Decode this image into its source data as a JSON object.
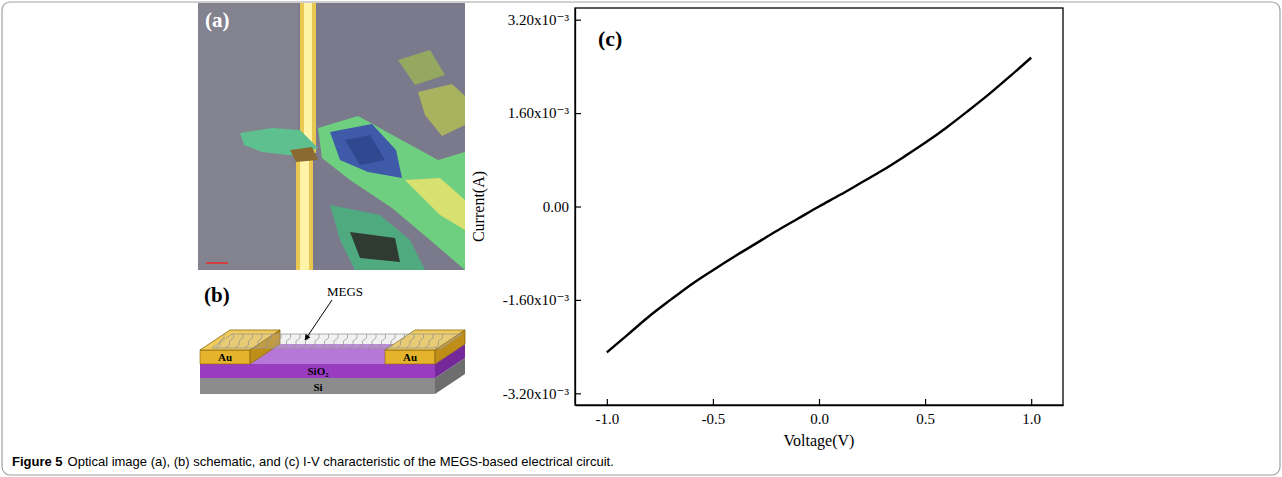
{
  "figure": {
    "caption_label": "Figure 5",
    "caption": "Optical image (a), (b) schematic, and (c) I-V characteristic of the MEGS-based electrical circuit.",
    "panels": [
      {
        "label": "(a)"
      },
      {
        "label": "(b)",
        "annotations": [
          "MEGS",
          "Au",
          "Au",
          "SiO₂",
          "Si"
        ]
      },
      {
        "label": "(c)"
      }
    ]
  },
  "chart_data": {
    "type": "line",
    "x_label": "Voltage(V)",
    "y_label": "Current(A)",
    "x": [
      -1.0,
      -0.9,
      -0.8,
      -0.7,
      -0.6,
      -0.5,
      -0.4,
      -0.3,
      -0.2,
      -0.1,
      0.0,
      0.1,
      0.2,
      0.3,
      0.4,
      0.5,
      0.6,
      0.7,
      0.8,
      0.9,
      1.0
    ],
    "values": [
      -0.0025,
      -0.00219,
      -0.00188,
      -0.0016,
      -0.00133,
      -0.00109,
      -0.00086,
      -0.00064,
      -0.00042,
      -0.00021,
      0.0,
      0.0002,
      0.00041,
      0.00062,
      0.00085,
      0.00109,
      0.00135,
      0.00163,
      0.00192,
      0.00223,
      0.00255
    ],
    "color": "#000000",
    "xlim": [
      -1.15,
      1.15
    ],
    "xticks": [
      {
        "value": -1.0,
        "label": "-1.0"
      },
      {
        "value": -0.5,
        "label": "-0.5"
      },
      {
        "value": 0.0,
        "label": "0.0"
      },
      {
        "value": 0.5,
        "label": "0.5"
      },
      {
        "value": 1.0,
        "label": "1.0"
      }
    ],
    "ylim": [
      -0.0034,
      0.0034
    ],
    "yticks": [
      {
        "value": -0.0032,
        "label": "-3.20x10⁻³"
      },
      {
        "value": -0.0016,
        "label": "-1.60x10⁻³"
      },
      {
        "value": 0.0,
        "label": "0.00"
      },
      {
        "value": 0.0016,
        "label": "1.60x10⁻³"
      },
      {
        "value": 0.0032,
        "label": "3.20x10⁻³"
      }
    ],
    "grid": false
  }
}
